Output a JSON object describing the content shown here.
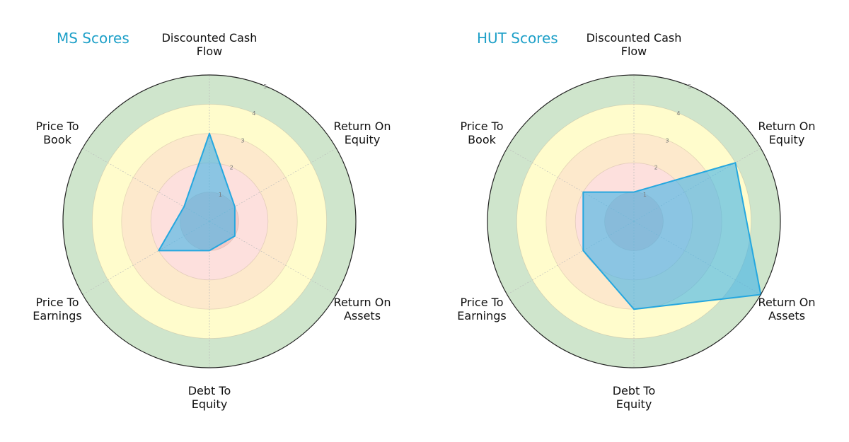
{
  "chart_data": [
    {
      "type": "radar",
      "title": "MS Scores",
      "axes": [
        "Discounted Cash Flow",
        "Return On Equity",
        "Return On Assets",
        "Debt To Equity",
        "Price To Earnings",
        "Price To Book"
      ],
      "values": [
        3,
        1,
        1,
        1,
        2,
        1
      ],
      "rlim": [
        0,
        5
      ],
      "rticks": [
        1,
        2,
        3,
        4,
        5
      ]
    },
    {
      "type": "radar",
      "title": "HUT Scores",
      "axes": [
        "Discounted Cash Flow",
        "Return On Equity",
        "Return On Assets",
        "Debt To Equity",
        "Price To Earnings",
        "Price To Book"
      ],
      "values": [
        1,
        4,
        5,
        3,
        2,
        2
      ],
      "rlim": [
        0,
        5
      ],
      "rticks": [
        1,
        2,
        3,
        4,
        5
      ]
    }
  ],
  "charts": [
    {
      "title": "MS Scores",
      "labels": [
        "Discounted Cash\nFlow",
        "Return On\nEquity",
        "Return On\nAssets",
        "Debt To\nEquity",
        "Price To\nEarnings",
        "Price To\nBook"
      ],
      "values": [
        3,
        1,
        1,
        1,
        2,
        1
      ]
    },
    {
      "title": "HUT Scores",
      "labels": [
        "Discounted Cash\nFlow",
        "Return On\nEquity",
        "Return On\nAssets",
        "Debt To\nEquity",
        "Price To\nEarnings",
        "Price To\nBook"
      ],
      "values": [
        1,
        4,
        5,
        3,
        2,
        2
      ]
    }
  ],
  "style": {
    "title_color": "#1ea0c8",
    "band_colors": [
      "#f5c9c6",
      "#fde0dd",
      "#fde9cc",
      "#fffccc",
      "#cfe5cc"
    ],
    "polygon_fill": "#3fb3e8",
    "polygon_edge": "#25a7df",
    "outer_ring_color": "#222222",
    "tick_labels": [
      "1",
      "2",
      "3",
      "4",
      "5"
    ]
  }
}
